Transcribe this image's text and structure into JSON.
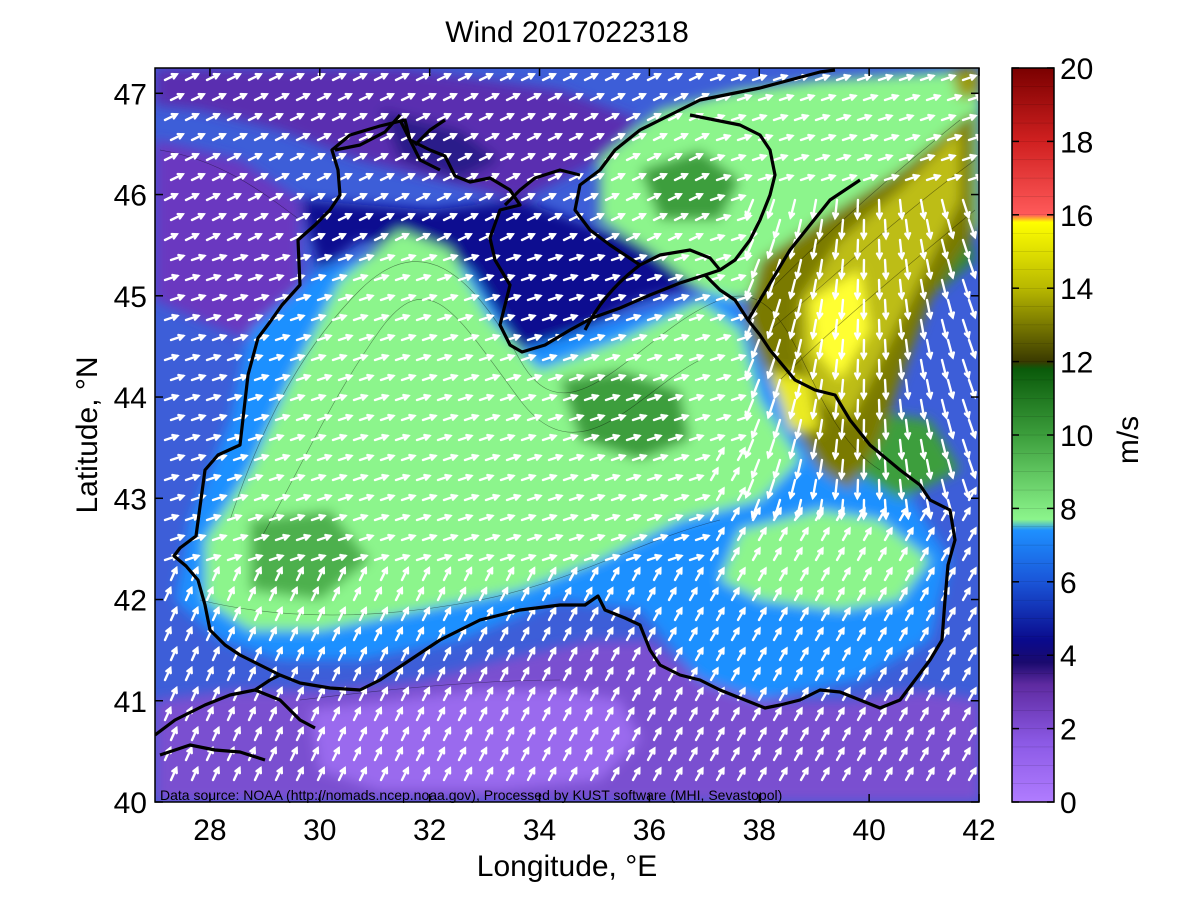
{
  "title": "Wind 2017022318",
  "x_axis": {
    "label": "Longitude, °E",
    "range": [
      27,
      42
    ],
    "ticks": [
      28,
      30,
      32,
      34,
      36,
      38,
      40,
      42
    ]
  },
  "y_axis": {
    "label": "Latitude, °N",
    "range": [
      40,
      47.25
    ],
    "ticks": [
      40,
      41,
      42,
      43,
      44,
      45,
      46,
      47
    ]
  },
  "colorbar": {
    "label": "m/s",
    "range": [
      0,
      20
    ],
    "ticks": [
      0,
      2,
      4,
      6,
      8,
      10,
      12,
      14,
      16,
      18,
      20
    ]
  },
  "credit": "Data source: NOAA (http://nomads.ncep.noaa.gov), Processed by KUST software (MHI, Sevastopol)",
  "colors": {
    "calm_violet": "#b07cff",
    "purple": "#5e2aa0",
    "navy": "#0a0a8c",
    "blue": "#1a55d8",
    "light_blue": "#1e90ff",
    "light_green": "#8cf58c",
    "green": "#1e6e1e",
    "olive": "#6b6b00",
    "yellow": "#ffff00",
    "salmon": "#ff7070",
    "dark_red": "#8b0000",
    "vectors": "#ffffff",
    "coastline": "#000000"
  }
}
